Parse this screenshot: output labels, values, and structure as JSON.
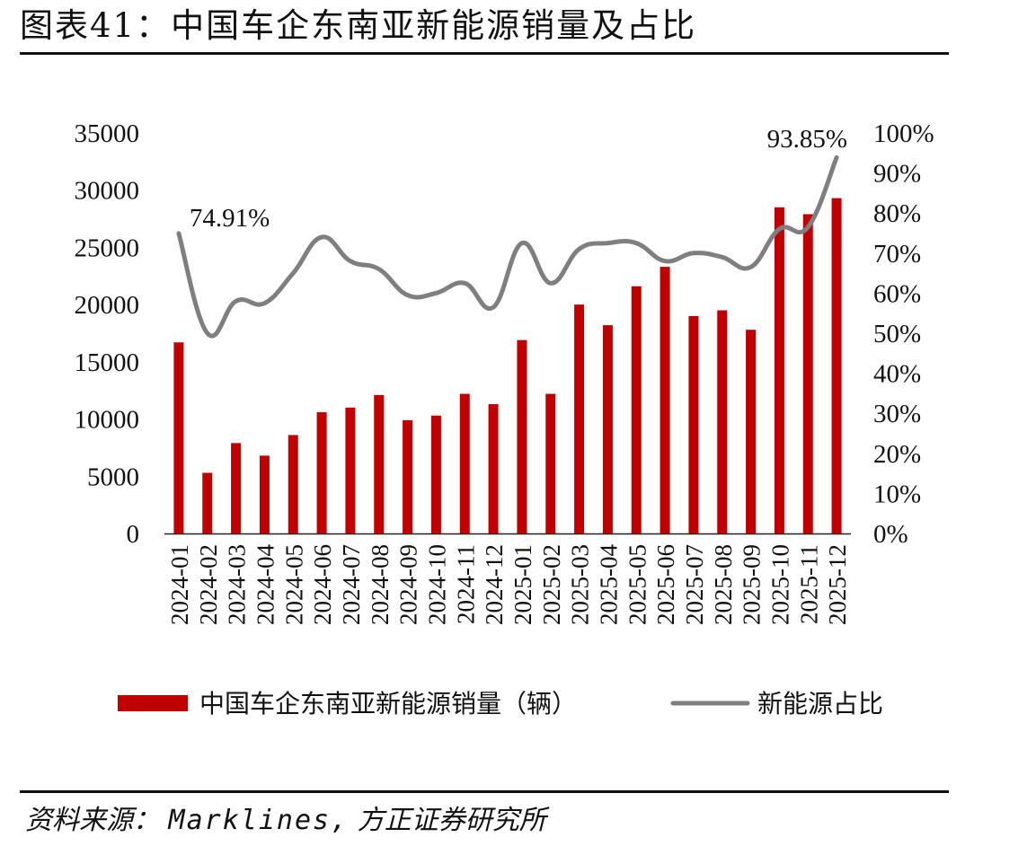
{
  "header": {
    "title": "图表41：中国车企东南亚新能源销量及占比"
  },
  "footer": {
    "source_label": "资料来源：",
    "source_brand": "Marklines,",
    "source_org": "方正证券研究所"
  },
  "chart_data": {
    "type": "bar",
    "title": "",
    "categories": [
      "2024-01",
      "2024-02",
      "2024-03",
      "2024-04",
      "2024-05",
      "2024-06",
      "2024-07",
      "2024-08",
      "2024-09",
      "2024-10",
      "2024-11",
      "2024-12",
      "2025-01",
      "2025-02",
      "2025-03",
      "2025-04",
      "2025-05",
      "2025-06",
      "2025-07",
      "2025-08",
      "2025-09",
      "2025-10",
      "2025-11",
      "2025-12"
    ],
    "series": [
      {
        "name": "中国车企东南亚新能源销量（辆）",
        "type": "bar",
        "axis": "left",
        "color": "#C00000",
        "values": [
          16700,
          5300,
          7900,
          6800,
          8600,
          10600,
          11000,
          12100,
          9900,
          10300,
          12200,
          11300,
          16900,
          12200,
          20000,
          18200,
          21600,
          23300,
          19000,
          19500,
          17800,
          28500,
          27900,
          29300
        ]
      },
      {
        "name": "新能源占比",
        "type": "line",
        "axis": "right",
        "color": "#7F7F7F",
        "values": [
          74.91,
          50.0,
          58.0,
          57.5,
          65.0,
          74.0,
          68.0,
          66.0,
          59.5,
          60.0,
          62.5,
          56.5,
          72.5,
          62.5,
          71.0,
          72.5,
          72.5,
          68.0,
          70.0,
          69.0,
          66.5,
          76.0,
          76.5,
          93.85
        ]
      }
    ],
    "y_left": {
      "ylim": [
        0,
        35000
      ],
      "ticks": [
        "0",
        "5000",
        "10000",
        "15000",
        "20000",
        "25000",
        "30000",
        "35000"
      ]
    },
    "y_right": {
      "ylim": [
        0,
        100
      ],
      "ticks": [
        "0%",
        "10%",
        "20%",
        "30%",
        "40%",
        "50%",
        "60%",
        "70%",
        "80%",
        "90%",
        "100%"
      ]
    },
    "annotations": [
      {
        "text": "74.91%",
        "category": "2024-01"
      },
      {
        "text": "93.85%",
        "category": "2025-12"
      }
    ],
    "legend": "bottom",
    "grid": false
  }
}
